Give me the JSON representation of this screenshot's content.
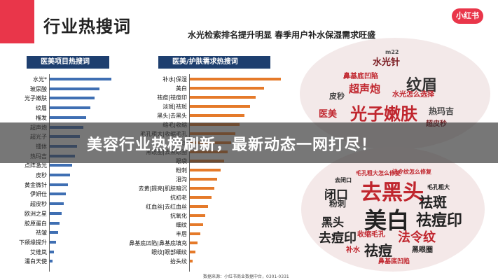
{
  "header": {
    "title": "行业热搜词",
    "subtitle": "水光检索排名提升明显  春季用户补水保湿需求旺盛",
    "logo_text": "小红书"
  },
  "left_chart": {
    "heading": "医美项目热搜词",
    "rows": [
      "水光*",
      "玻尿酸",
      "光子嫩肤",
      "纹眉",
      "榴发",
      "超声炮",
      "超光子",
      "镭体",
      "热玛吉",
      "点阵激光",
      "皮秒",
      "黄金微针",
      "伊妍仕",
      "超皮秒",
      "欧洲之星",
      "胶原蛋白",
      "祛皱",
      "下颌缘提升",
      "艾维岚",
      "濡白天使"
    ]
  },
  "right_chart": {
    "heading": "医美/护肤需求热搜词",
    "rows": [
      "补水|保湿",
      "美白",
      "祛痘|祛痘印",
      "淡斑|祛斑",
      "黑头|去黑头",
      "缩毛|收缩",
      "毛孔粗大|收缩毛孔",
      "法令纹",
      "黑眼圈|去黑眼圈",
      "眼袋",
      "粉刺",
      "泪沟",
      "去黄|提亮|肌肤暗沉",
      "抗初老",
      "红血丝|去红血丝",
      "抗氧化",
      "细纹",
      "丰唇",
      "鼻基底凹陷|鼻基底填充",
      "眼纹|眼部细纹",
      "抬头纹"
    ]
  },
  "cloud_top": {
    "words": [
      "水光针",
      "光子嫩肤",
      "纹眉",
      "超声炮",
      "医美",
      "热玛吉",
      "皮秒",
      "鼻基底凹陷",
      "水光怎么选择",
      "超皮秒",
      "m22",
      "光子嫩肤效果"
    ]
  },
  "cloud_bottom": {
    "words": [
      "去黑头",
      "美白",
      "祛斑",
      "祛痘印",
      "法令纹",
      "去痘印",
      "祛痘",
      "黑头",
      "闭口",
      "粉刺",
      "收缩毛孔",
      "黑眼圈",
      "补水",
      "法令纹怎么修复",
      "毛孔粗大怎么修复",
      "去闭口",
      "毛孔粗大",
      "鼻基底凹陷"
    ]
  },
  "banner": {
    "headline": "美容行业热榜刷新，最新动态一网打尽！"
  },
  "footer": {
    "source": "数据来源：小红书商业数据中台，0301-0331"
  },
  "colors": {
    "brand_red": "#e9364a",
    "navy": "#1e3f6f",
    "bar_blue": "#3f6fb3",
    "bar_orange": "#e57a2a",
    "cloud_red": "#c0262e"
  }
}
